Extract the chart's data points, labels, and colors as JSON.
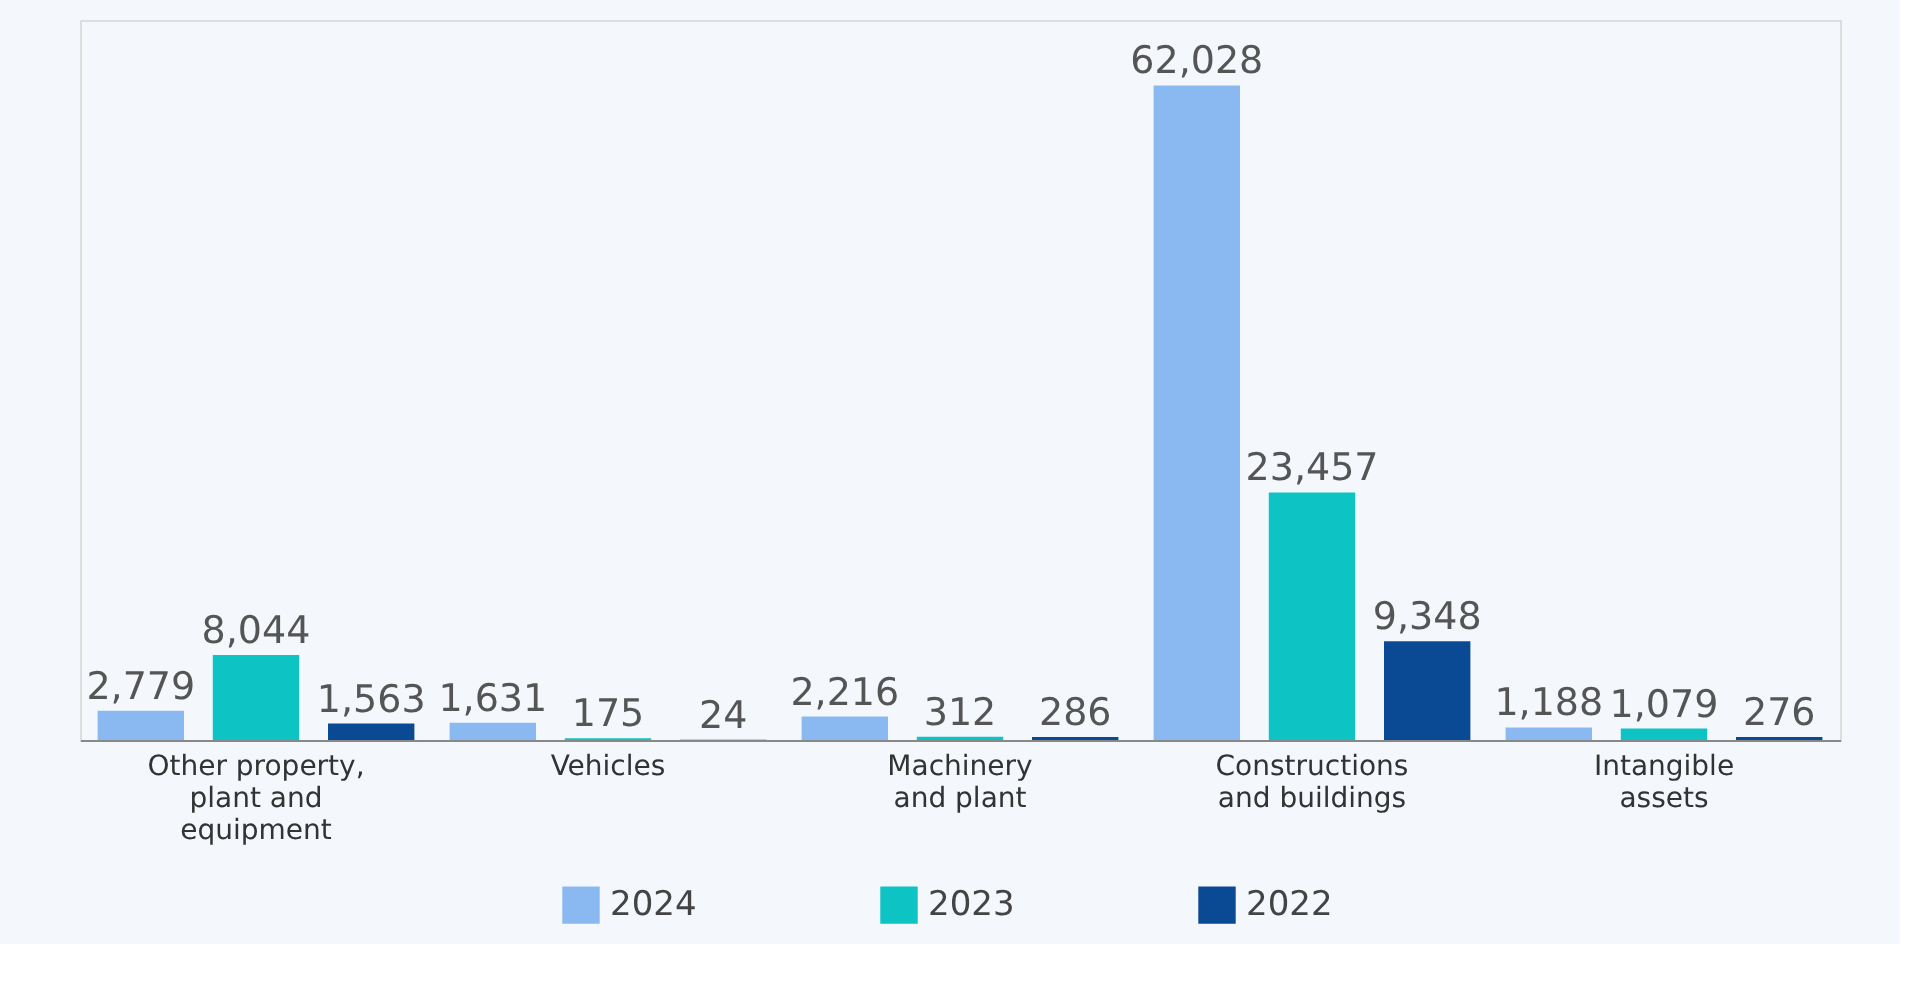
{
  "chart_data": {
    "type": "bar",
    "categories": [
      "Other property, plant and equipment",
      "Vehicles",
      "Machinery and plant",
      "Constructions and buildings",
      "Intangible assets"
    ],
    "series": [
      {
        "name": "2024",
        "color": "#8ab9f1",
        "values": [
          2779,
          1631,
          2216,
          62028,
          1188
        ],
        "value_labels": [
          "2,779",
          "1,631",
          "2,216",
          "62,028",
          "1,188"
        ]
      },
      {
        "name": "2023",
        "color": "#0dc3c4",
        "values": [
          8044,
          175,
          312,
          23457,
          1079
        ],
        "value_labels": [
          "8,044",
          "175",
          "312",
          "23,457",
          "1,079"
        ]
      },
      {
        "name": "2022",
        "color": "#0a4a94",
        "values": [
          1563,
          24,
          286,
          9348,
          276
        ],
        "value_labels": [
          "1,563",
          "24",
          "286",
          "9,348",
          "276"
        ]
      }
    ],
    "legend": "bottom",
    "grid": false
  }
}
